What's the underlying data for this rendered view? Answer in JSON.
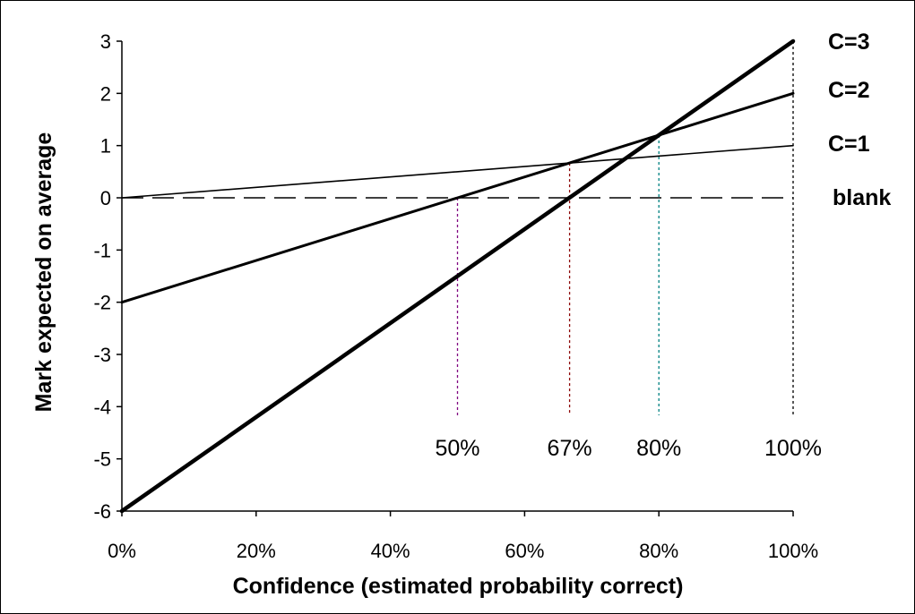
{
  "chart_data": {
    "type": "line",
    "title": "",
    "xlabel": "Confidence (estimated probability correct)",
    "ylabel": "Mark expected on average",
    "xlim": [
      0,
      1
    ],
    "ylim": [
      -6,
      3
    ],
    "x_ticks": [
      0,
      0.2,
      0.4,
      0.6,
      0.8,
      1.0
    ],
    "x_tick_labels": [
      "0%",
      "20%",
      "40%",
      "60%",
      "80%",
      "100%"
    ],
    "y_ticks": [
      -6,
      -5,
      -4,
      -3,
      -2,
      -1,
      0,
      1,
      2,
      3
    ],
    "y_tick_labels": [
      "-6",
      "-5",
      "-4",
      "-3",
      "-2",
      "-1",
      "0",
      "1",
      "2",
      "3"
    ],
    "grid": false,
    "legend": "none",
    "series": [
      {
        "name": "C=3",
        "x": [
          0,
          1
        ],
        "y": [
          -6,
          3
        ],
        "color": "#000000",
        "dash": "solid"
      },
      {
        "name": "C=2",
        "x": [
          0,
          1
        ],
        "y": [
          -2,
          2
        ],
        "color": "#000000",
        "dash": "solid"
      },
      {
        "name": "C=1",
        "x": [
          0,
          1
        ],
        "y": [
          0,
          1
        ],
        "color": "#000000",
        "dash": "solid"
      },
      {
        "name": "blank",
        "x": [
          0,
          1
        ],
        "y": [
          0,
          0
        ],
        "color": "#000000",
        "dash": "dashed"
      }
    ],
    "reference_lines": [
      {
        "label": "50%",
        "x": 0.5,
        "y_top": 0,
        "color": "#800080"
      },
      {
        "label": "67%",
        "x": 0.667,
        "y_top": 0.667,
        "color": "#8b0000"
      },
      {
        "label": "80%",
        "x": 0.8,
        "y_top": 1.2,
        "color": "#008080"
      },
      {
        "label": "100%",
        "x": 1.0,
        "y_top": 3,
        "color": "#000000"
      }
    ]
  }
}
